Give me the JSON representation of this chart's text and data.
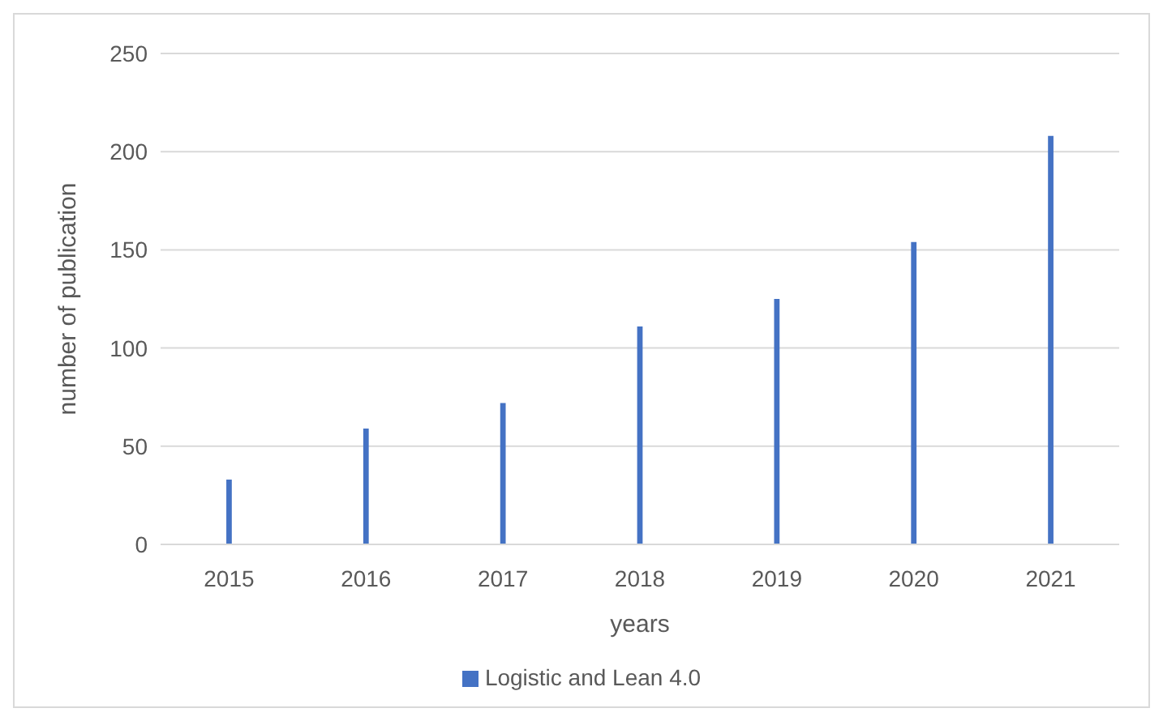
{
  "chart_data": {
    "type": "bar",
    "xlabel": "years",
    "ylabel": "number of publication",
    "categories": [
      "2015",
      "2016",
      "2017",
      "2018",
      "2019",
      "2020",
      "2021"
    ],
    "series": [
      {
        "name": "Logistic and Lean 4.0",
        "color": "#4472c4",
        "values": [
          33,
          59,
          72,
          111,
          125,
          154,
          208
        ]
      }
    ],
    "ylim": [
      0,
      250
    ],
    "yticks": [
      0,
      50,
      100,
      150,
      200,
      250
    ],
    "grid": "y",
    "legend": "bottom"
  }
}
